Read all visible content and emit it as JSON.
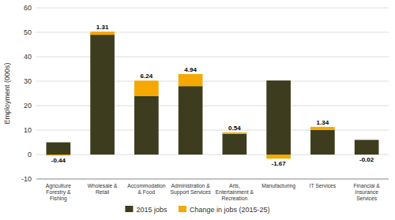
{
  "chart_data": {
    "type": "bar",
    "stacked": true,
    "categories": [
      "Agriculture\nForestry &\nFishing",
      "Wholesale &\nRetail",
      "Accommodation\n& Food",
      "Administration &\nSupport Services",
      "Arts,\nEntertainment &\nRecreation",
      "Manufacturing",
      "IT Services",
      "Financial &\nInsurance\nServices"
    ],
    "series": [
      {
        "name": "2015 jobs",
        "color": "#3d3c1e",
        "values": [
          5.0,
          49.0,
          24.0,
          28.0,
          8.5,
          30.3,
          10.0,
          6.0
        ]
      },
      {
        "name": "Change in jobs (2015-25)",
        "color": "#f5a800",
        "values": [
          -0.44,
          1.31,
          6.24,
          4.94,
          0.54,
          -1.67,
          1.34,
          -0.02
        ],
        "data_labels": true
      }
    ],
    "ylabel": "Employment (000s)",
    "ylim": [
      -10,
      60
    ],
    "yticks": [
      -10,
      0,
      10,
      20,
      30,
      40,
      50,
      60
    ],
    "grid": true,
    "legend": "bottom"
  }
}
